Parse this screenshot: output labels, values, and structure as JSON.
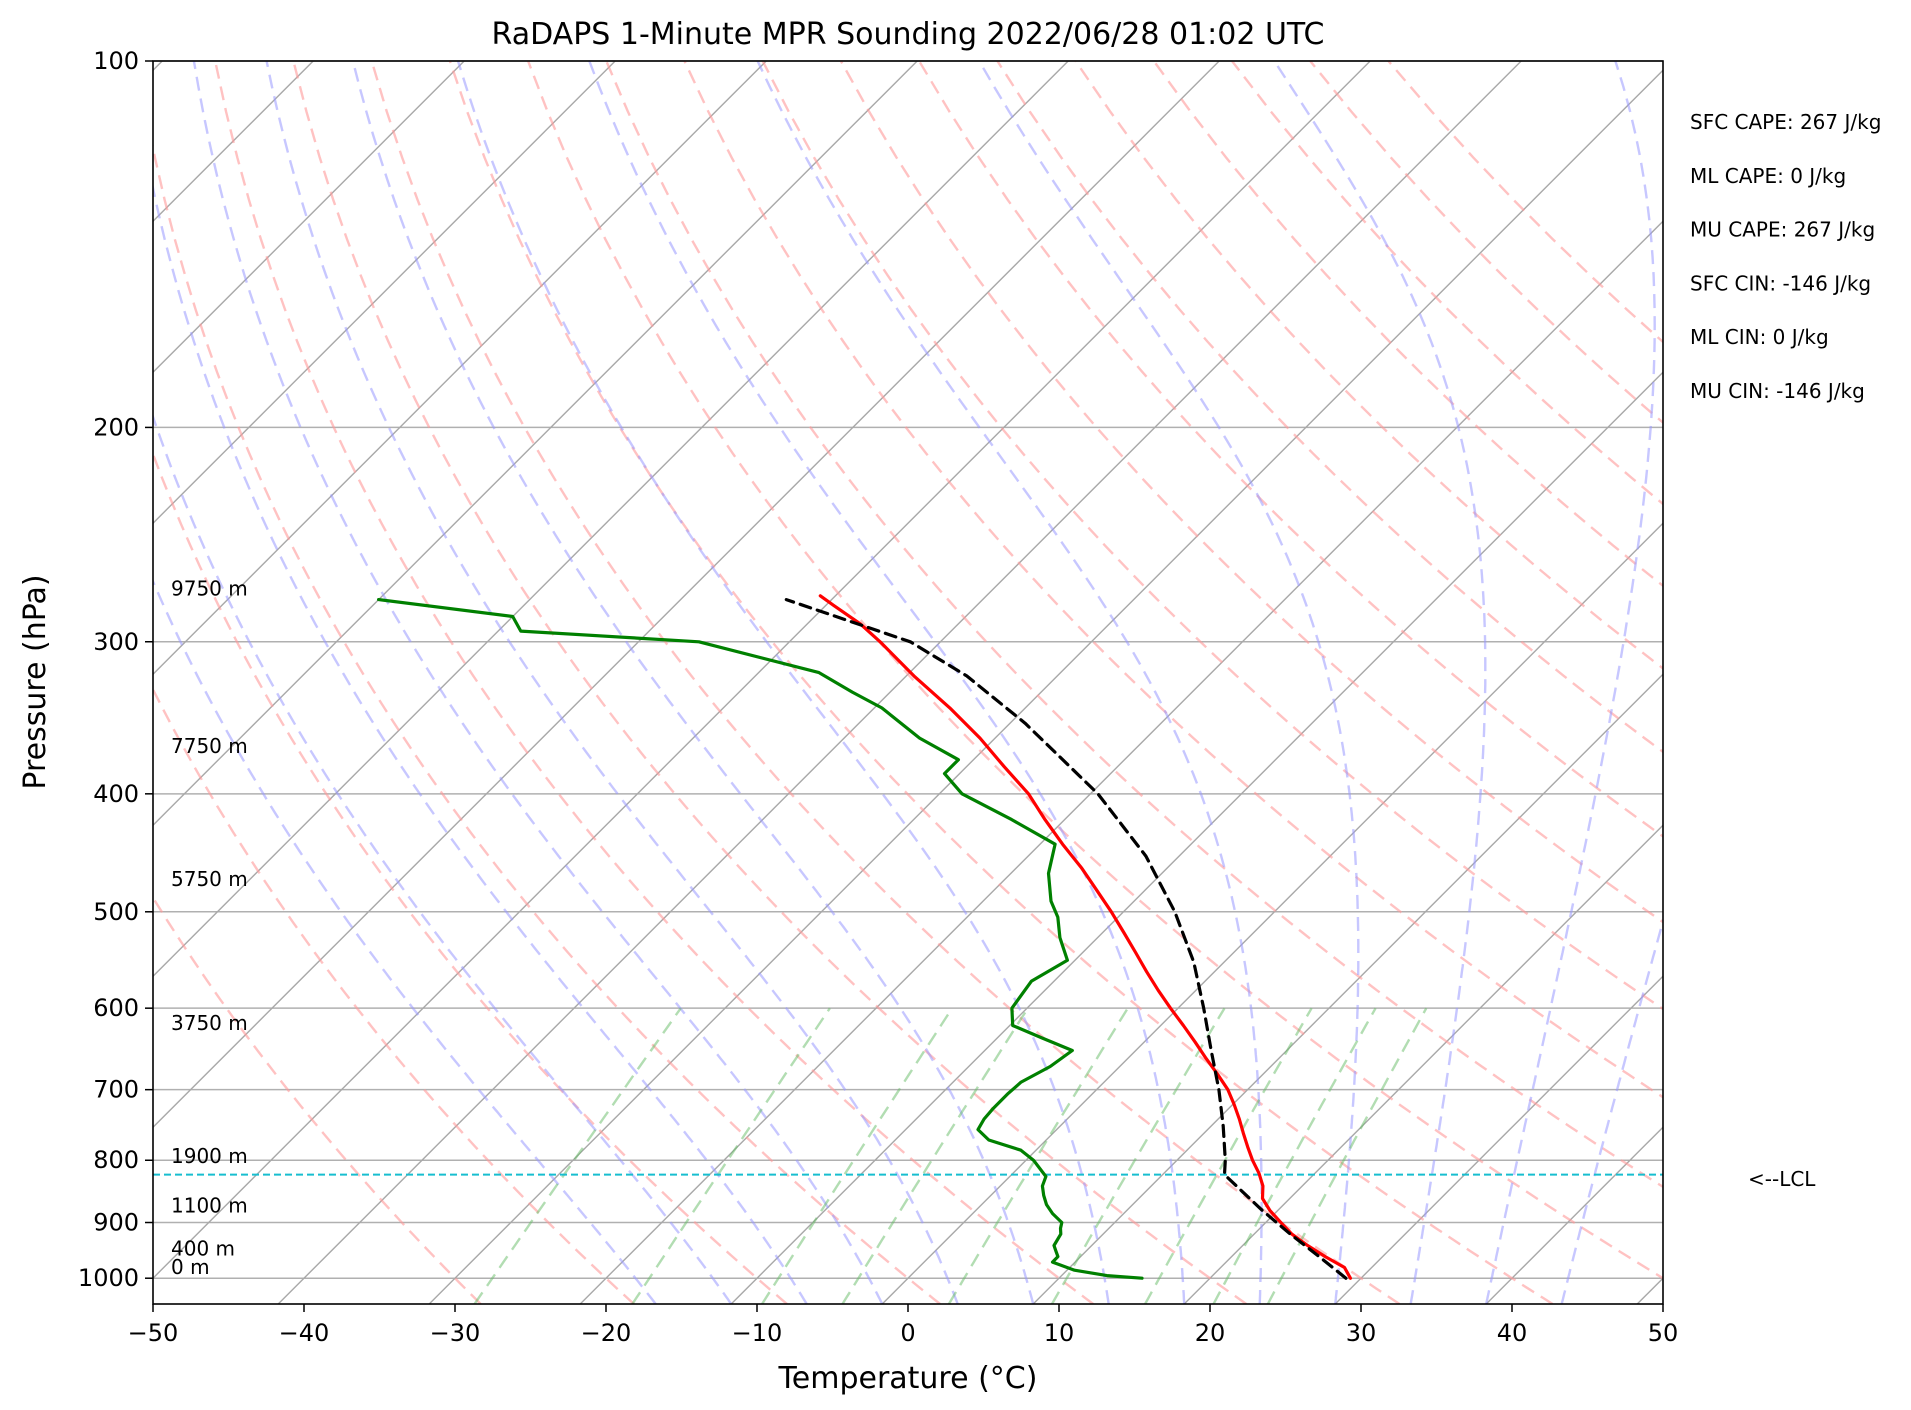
{
  "chart_data": {
    "type": "line",
    "title": "RaDAPS 1-Minute MPR Sounding 2022/06/28 01:02 UTC",
    "xlabel": "Temperature (°C)",
    "ylabel": "Pressure (hPa)",
    "xlim": [
      -50,
      50
    ],
    "ylim": [
      1050,
      100
    ],
    "y_scale": "log",
    "x_ticks": [
      -50,
      -40,
      -30,
      -20,
      -10,
      0,
      10,
      20,
      30,
      40,
      50
    ],
    "x_tick_labels": [
      "−50",
      "−40",
      "−30",
      "−20",
      "−10",
      "0",
      "10",
      "20",
      "30",
      "40",
      "50"
    ],
    "y_ticks": [
      100,
      200,
      300,
      400,
      500,
      600,
      700,
      800,
      900,
      1000
    ],
    "y_tick_labels": [
      "100",
      "200",
      "300",
      "400",
      "500",
      "600",
      "700",
      "800",
      "900",
      "1000"
    ],
    "grid": true,
    "skew": true,
    "series": [
      {
        "id": "temperature",
        "color": "#ff0000",
        "points": [
          [
            1000,
            29.3
          ],
          [
            980,
            28.2
          ],
          [
            960,
            26.2
          ],
          [
            940,
            24.3
          ],
          [
            920,
            22.5
          ],
          [
            900,
            21.0
          ],
          [
            880,
            19.5
          ],
          [
            860,
            18.2
          ],
          [
            840,
            17.4
          ],
          [
            820,
            16.3
          ],
          [
            800,
            15.0
          ],
          [
            780,
            13.8
          ],
          [
            760,
            12.6
          ],
          [
            740,
            11.4
          ],
          [
            720,
            10.1
          ],
          [
            700,
            8.7
          ],
          [
            680,
            7.0
          ],
          [
            660,
            5.2
          ],
          [
            640,
            3.4
          ],
          [
            620,
            1.5
          ],
          [
            600,
            -0.5
          ],
          [
            580,
            -2.5
          ],
          [
            560,
            -4.5
          ],
          [
            540,
            -6.5
          ],
          [
            520,
            -8.6
          ],
          [
            500,
            -10.8
          ],
          [
            480,
            -13.2
          ],
          [
            460,
            -15.7
          ],
          [
            440,
            -18.5
          ],
          [
            420,
            -21.3
          ],
          [
            400,
            -24.1
          ],
          [
            380,
            -27.5
          ],
          [
            360,
            -31.0
          ],
          [
            340,
            -35.0
          ],
          [
            320,
            -39.5
          ],
          [
            300,
            -44.0
          ],
          [
            290,
            -46.5
          ],
          [
            280,
            -49.5
          ],
          [
            275,
            -51.0
          ]
        ]
      },
      {
        "id": "dewpoint",
        "color": "#008000",
        "points": [
          [
            1000,
            15.5
          ],
          [
            995,
            13.0
          ],
          [
            985,
            10.5
          ],
          [
            970,
            8.5
          ],
          [
            960,
            8.5
          ],
          [
            950,
            8.0
          ],
          [
            940,
            7.5
          ],
          [
            920,
            7.2
          ],
          [
            910,
            6.8
          ],
          [
            900,
            6.5
          ],
          [
            885,
            5.3
          ],
          [
            870,
            4.3
          ],
          [
            855,
            3.5
          ],
          [
            840,
            2.8
          ],
          [
            825,
            2.4
          ],
          [
            800,
            0.5
          ],
          [
            785,
            -1.0
          ],
          [
            770,
            -3.8
          ],
          [
            755,
            -5.2
          ],
          [
            740,
            -5.5
          ],
          [
            725,
            -5.6
          ],
          [
            705,
            -5.6
          ],
          [
            690,
            -5.5
          ],
          [
            670,
            -4.6
          ],
          [
            650,
            -4.2
          ],
          [
            635,
            -7.0
          ],
          [
            620,
            -9.8
          ],
          [
            600,
            -11.0
          ],
          [
            570,
            -11.5
          ],
          [
            548,
            -10.5
          ],
          [
            525,
            -12.5
          ],
          [
            505,
            -14.0
          ],
          [
            490,
            -15.5
          ],
          [
            465,
            -17.5
          ],
          [
            440,
            -19.0
          ],
          [
            420,
            -23.5
          ],
          [
            400,
            -28.5
          ],
          [
            385,
            -31.0
          ],
          [
            375,
            -31.0
          ],
          [
            360,
            -35.0
          ],
          [
            340,
            -39.5
          ],
          [
            330,
            -42.5
          ],
          [
            318,
            -46.0
          ],
          [
            300,
            -56.0
          ],
          [
            294,
            -68.5
          ],
          [
            286,
            -70.0
          ],
          [
            277,
            -80.0
          ]
        ]
      },
      {
        "id": "parcel",
        "color": "#000000",
        "dashed": true,
        "points": [
          [
            1000,
            29.0
          ],
          [
            960,
            25.8
          ],
          [
            920,
            22.4
          ],
          [
            880,
            19.0
          ],
          [
            850,
            16.5
          ],
          [
            822,
            14.1
          ],
          [
            800,
            13.2
          ],
          [
            750,
            10.8
          ],
          [
            700,
            8.1
          ],
          [
            650,
            5.0
          ],
          [
            600,
            1.7
          ],
          [
            550,
            -2.0
          ],
          [
            500,
            -6.6
          ],
          [
            450,
            -12.2
          ],
          [
            400,
            -19.5
          ],
          [
            350,
            -29.0
          ],
          [
            320,
            -36.0
          ],
          [
            300,
            -42.0
          ],
          [
            277,
            -53.0
          ]
        ]
      }
    ],
    "lcl_pressure": 822,
    "lcl_label": "<--LCL",
    "height_labels": [
      {
        "p": 1000,
        "label": "0 m"
      },
      {
        "p": 965,
        "label": "400 m"
      },
      {
        "p": 890,
        "label": "1100 m"
      },
      {
        "p": 810,
        "label": "1900 m"
      },
      {
        "p": 630,
        "label": "3750 m"
      },
      {
        "p": 480,
        "label": "5750 m"
      },
      {
        "p": 373,
        "label": "7750 m"
      },
      {
        "p": 277,
        "label": "9750 m"
      }
    ],
    "stats": [
      "SFC CAPE: 267 J/kg",
      "ML CAPE: 0 J/kg",
      "MU CAPE: 267 J/kg",
      "SFC CIN: -146 J/kg",
      "ML CIN: 0 J/kg",
      "MU CIN: -146 J/kg"
    ],
    "reference_lines": {
      "dry_adiabats_theta_c": [
        -30,
        -20,
        -10,
        0,
        10,
        20,
        30,
        40,
        50,
        60,
        70,
        80,
        90,
        100,
        110,
        120,
        130,
        140,
        150,
        160
      ],
      "dry_adiabat_color": "#ff9999",
      "moist_adiabats_t0_c": [
        -15,
        -10,
        -5,
        0,
        5,
        10,
        15,
        20,
        25,
        30,
        35,
        40,
        45
      ],
      "moist_adiabat_color": "#9999ff",
      "mixing_ratios_gkg": [
        0.4,
        1,
        2,
        3,
        5,
        8,
        12,
        16,
        20
      ],
      "mixing_ratio_color": "#66bb66"
    }
  }
}
